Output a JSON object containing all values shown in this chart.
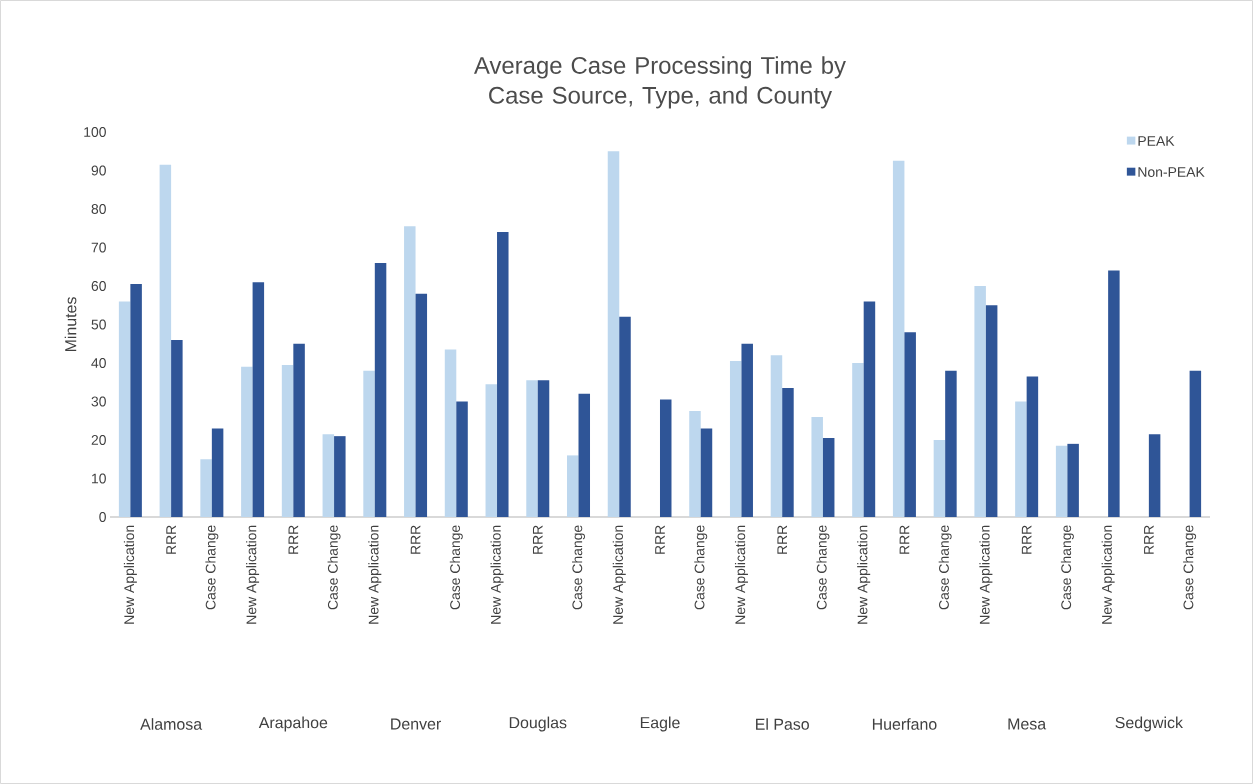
{
  "chart_data": {
    "type": "bar",
    "title": "Average Case Processing Time by Case Source, Type, and County",
    "ylabel": "Minutes",
    "categories": [
      "New Application",
      "RRR",
      "Case Change",
      "New Application",
      "RRR",
      "Case Change",
      "New Application",
      "RRR",
      "Case Change",
      "New Application",
      "RRR",
      "Case Change",
      "New Application",
      "RRR",
      "Case Change",
      "New Application",
      "RRR",
      "Case Change",
      "New Application",
      "RRR",
      "Case Change",
      "New Application",
      "RRR",
      "Case Change",
      "New Application",
      "RRR",
      "Case Change"
    ],
    "series": [
      {
        "name": "PEAK",
        "color": "#bdd7ee",
        "values": [
          56,
          91.5,
          15,
          39,
          39.5,
          21.5,
          38,
          75.5,
          43.5,
          34.5,
          35.5,
          16,
          95,
          null,
          27.5,
          40.5,
          42,
          26,
          40,
          92.5,
          20,
          60,
          30,
          18.5,
          null,
          null,
          null
        ]
      },
      {
        "name": "Non-PEAK",
        "color": "#2f5597",
        "values": [
          60.5,
          46,
          23,
          61,
          45,
          21,
          66,
          58,
          30,
          74,
          35.5,
          32,
          52,
          30.5,
          23,
          45,
          33.5,
          20.5,
          56,
          48,
          38,
          55,
          36.5,
          19,
          64,
          21.5,
          38
        ]
      }
    ],
    "annotations": [
      "Alamosa",
      "Arapahoe",
      "Denver",
      "Douglas",
      "Eagle",
      "El Paso",
      "Huerfano",
      "Mesa",
      "Sedgwick"
    ],
    "ylim": [
      0,
      100
    ],
    "yticks": [
      0,
      10,
      20,
      30,
      40,
      50,
      60,
      70,
      80,
      90,
      100
    ],
    "legend": "top right"
  }
}
